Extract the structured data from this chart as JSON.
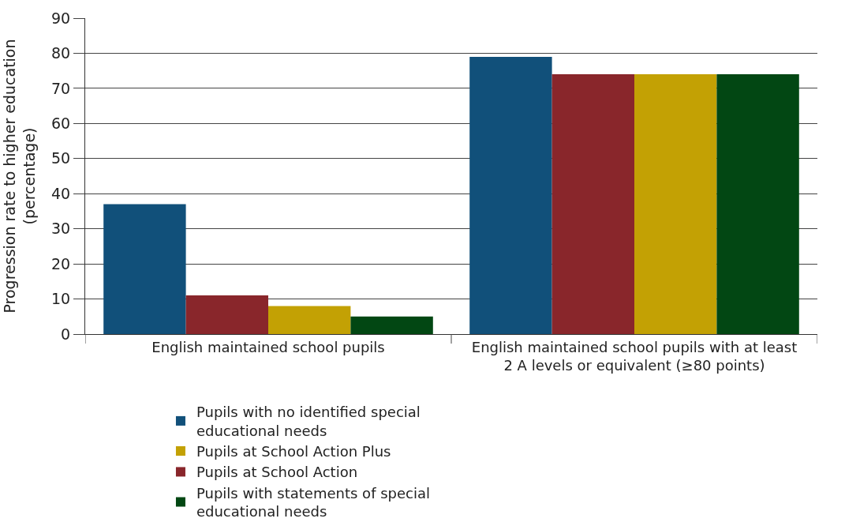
{
  "chart_data": {
    "type": "bar",
    "ylabel": "Progression rate to higher education (percentage)",
    "categories": [
      "English maintained school pupils",
      "English maintained school pupils with at least 2 A levels or equivalent (≥80 points)"
    ],
    "series": [
      {
        "name": "Pupils with no identified special educational needs",
        "color": "#11507a",
        "values": [
          37,
          79
        ]
      },
      {
        "name": "Pupils at School Action",
        "color": "#89262b",
        "values": [
          11,
          74
        ]
      },
      {
        "name": "Pupils at School Action Plus",
        "color": "#c3a104",
        "values": [
          8,
          74
        ]
      },
      {
        "name": "Pupils with statements of special educational needs",
        "color": "#024713",
        "values": [
          5,
          74
        ]
      }
    ],
    "ylim": [
      0,
      90
    ],
    "yticks": [
      0,
      10,
      20,
      30,
      40,
      50,
      60,
      70,
      80,
      90
    ],
    "grid": "y",
    "legend": "bottom"
  }
}
